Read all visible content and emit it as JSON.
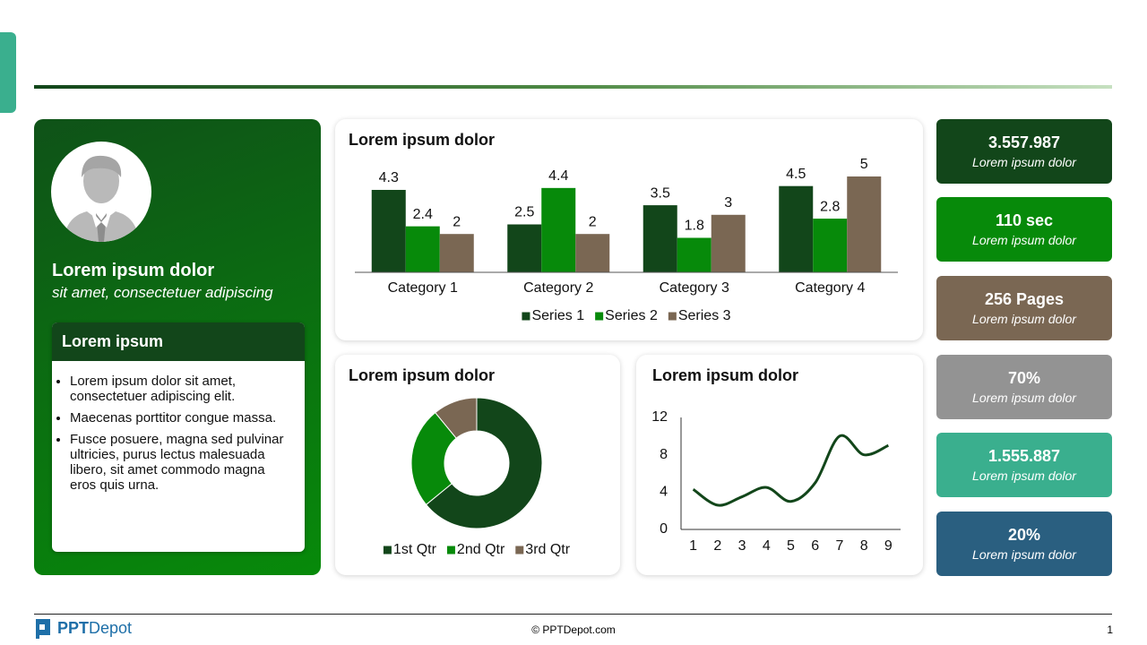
{
  "profile": {
    "title": "Lorem ipsum dolor",
    "subtitle": "sit amet, consectetuer adipiscing",
    "box_title": "Lorem ipsum",
    "bullets": [
      "Lorem ipsum dolor sit amet, consectetuer adipiscing elit.",
      "Maecenas porttitor congue massa.",
      "Fusce posuere, magna sed pulvinar ultricies, purus lectus malesuada libero, sit amet commodo magna eros quis urna."
    ]
  },
  "chart_data": [
    {
      "type": "bar",
      "title": "Lorem ipsum dolor",
      "categories": [
        "Category 1",
        "Category 2",
        "Category 3",
        "Category 4"
      ],
      "series": [
        {
          "name": "Series 1",
          "color": "#12461a",
          "values": [
            4.3,
            2.5,
            3.5,
            4.5
          ]
        },
        {
          "name": "Series 2",
          "color": "#078a0a",
          "values": [
            2.4,
            4.4,
            1.8,
            2.8
          ]
        },
        {
          "name": "Series 3",
          "color": "#7a6753",
          "values": [
            2,
            2,
            3,
            5
          ]
        }
      ]
    },
    {
      "type": "donut",
      "title": "Lorem ipsum dolor",
      "categories": [
        "1st Qtr",
        "2nd Qtr",
        "3rd Qtr"
      ],
      "values": [
        8.2,
        3.2,
        1.4
      ],
      "colors": [
        "#12461a",
        "#078a0a",
        "#7a6753"
      ]
    },
    {
      "type": "line",
      "title": "Lorem ipsum dolor",
      "color": "#12461a",
      "x": [
        1,
        2,
        3,
        4,
        5,
        6,
        7,
        8,
        9
      ],
      "values": [
        4.3,
        2.6,
        3.5,
        4.5,
        3,
        5,
        10,
        8,
        9
      ],
      "xlim": [
        0.5,
        9.5
      ],
      "xticks": [
        1,
        2,
        3,
        4,
        5,
        6,
        7,
        8,
        9
      ],
      "ylim": [
        0,
        12
      ],
      "yticks": [
        0,
        4,
        8,
        12
      ]
    }
  ],
  "kpis": [
    {
      "value": "3.557.987",
      "label": "Lorem ipsum dolor",
      "color": "#12461a"
    },
    {
      "value": "110 sec",
      "label": "Lorem ipsum dolor",
      "color": "#078a0a"
    },
    {
      "value": "256 Pages",
      "label": "Lorem ipsum dolor",
      "color": "#7a6753"
    },
    {
      "value": "70%",
      "label": "Lorem ipsum dolor",
      "color": "#939393"
    },
    {
      "value": "1.555.887",
      "label": "Lorem ipsum dolor",
      "color": "#3aaf8e"
    },
    {
      "value": "20%",
      "label": "Lorem ipsum dolor",
      "color": "#2a5f80"
    }
  ],
  "footer": {
    "logo_bold": "PPT",
    "logo_rest": "Depot",
    "copyright": "© PPTDepot.com",
    "page": "1"
  }
}
